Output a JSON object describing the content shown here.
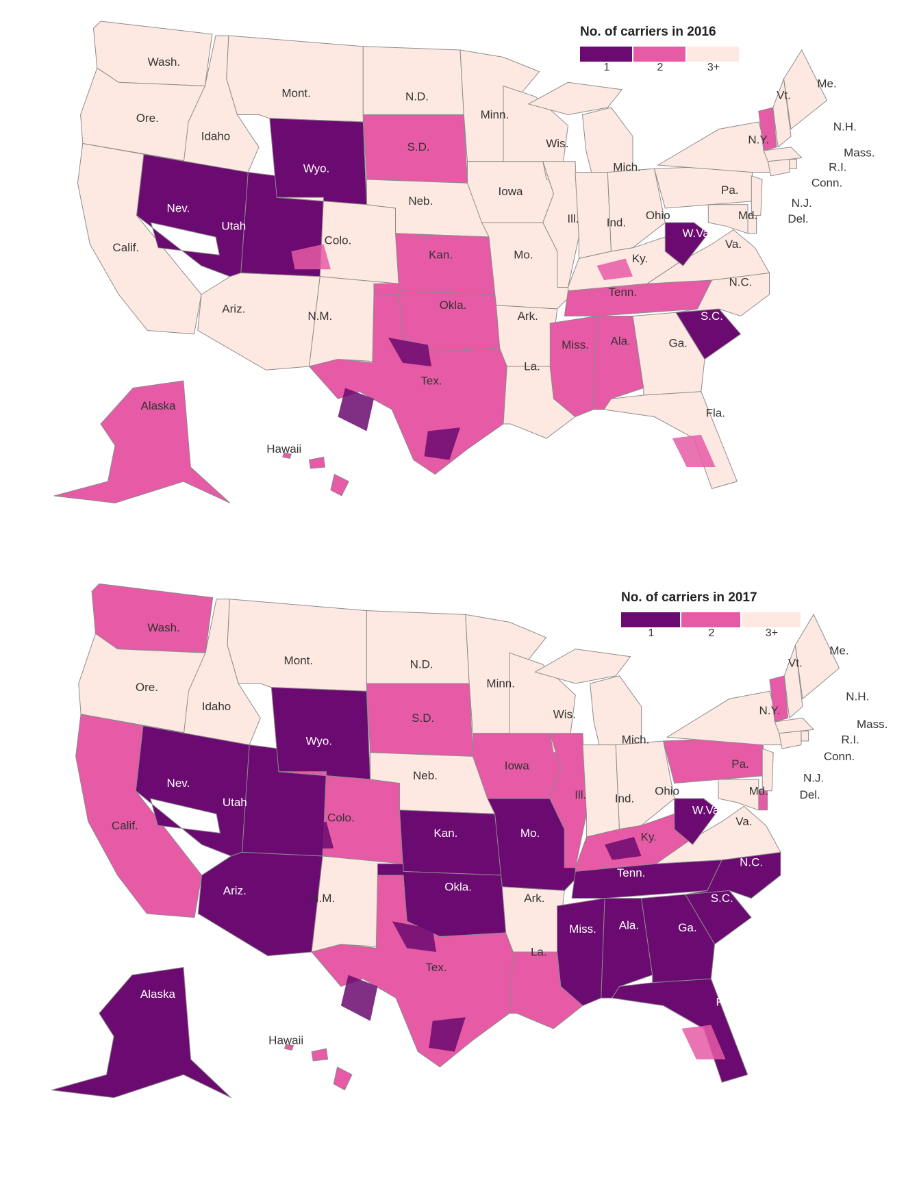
{
  "colors": {
    "one": "#6b0a70",
    "two": "#e65aa6",
    "three_plus": "#fde9e1",
    "border": "#8c8c8c",
    "label_dark": "#333333",
    "label_light": "#ffffff",
    "no_data": "#d9d9d9"
  },
  "legend_labels": [
    "1",
    "2",
    "3+"
  ],
  "maps": [
    {
      "legend_title": "No. of carriers in 2016",
      "states": {
        "WA": {
          "label": "Wash.",
          "carriers": "3+"
        },
        "OR": {
          "label": "Ore.",
          "carriers": "3+"
        },
        "CA": {
          "label": "Calif.",
          "carriers": "3+"
        },
        "ID": {
          "label": "Idaho",
          "carriers": "3+"
        },
        "NV": {
          "label": "Nev.",
          "carriers": "1"
        },
        "UT": {
          "label": "Utah",
          "carriers": "1"
        },
        "AZ": {
          "label": "Ariz.",
          "carriers": "3+"
        },
        "MT": {
          "label": "Mont.",
          "carriers": "3+"
        },
        "WY": {
          "label": "Wyo.",
          "carriers": "1"
        },
        "CO": {
          "label": "Colo.",
          "carriers": "3+"
        },
        "NM": {
          "label": "N.M.",
          "carriers": "3+"
        },
        "ND": {
          "label": "N.D.",
          "carriers": "3+"
        },
        "SD": {
          "label": "S.D.",
          "carriers": "2"
        },
        "NE": {
          "label": "Neb.",
          "carriers": "3+"
        },
        "KS": {
          "label": "Kan.",
          "carriers": "2"
        },
        "OK": {
          "label": "Okla.",
          "carriers": "2"
        },
        "TX": {
          "label": "Tex.",
          "carriers": "2"
        },
        "MN": {
          "label": "Minn.",
          "carriers": "3+"
        },
        "IA": {
          "label": "Iowa",
          "carriers": "3+"
        },
        "MO": {
          "label": "Mo.",
          "carriers": "3+"
        },
        "AR": {
          "label": "Ark.",
          "carriers": "3+"
        },
        "LA": {
          "label": "La.",
          "carriers": "3+"
        },
        "WI": {
          "label": "Wis.",
          "carriers": "3+"
        },
        "IL": {
          "label": "Ill.",
          "carriers": "3+"
        },
        "MI": {
          "label": "Mich.",
          "carriers": "3+"
        },
        "IN": {
          "label": "Ind.",
          "carriers": "3+"
        },
        "OH": {
          "label": "Ohio",
          "carriers": "3+"
        },
        "KY": {
          "label": "Ky.",
          "carriers": "3+"
        },
        "TN": {
          "label": "Tenn.",
          "carriers": "2"
        },
        "MS": {
          "label": "Miss.",
          "carriers": "2"
        },
        "AL": {
          "label": "Ala.",
          "carriers": "2"
        },
        "GA": {
          "label": "Ga.",
          "carriers": "3+"
        },
        "FL": {
          "label": "Fla.",
          "carriers": "3+"
        },
        "SC": {
          "label": "S.C.",
          "carriers": "1"
        },
        "NC": {
          "label": "N.C.",
          "carriers": "3+"
        },
        "VA": {
          "label": "Va.",
          "carriers": "3+"
        },
        "WV": {
          "label": "W.Va.",
          "carriers": "1"
        },
        "PA": {
          "label": "Pa.",
          "carriers": "3+"
        },
        "NY": {
          "label": "N.Y.",
          "carriers": "3+"
        },
        "VT": {
          "label": "Vt.",
          "carriers": "2"
        },
        "NH": {
          "label": "N.H.",
          "carriers": "3+"
        },
        "ME": {
          "label": "Me.",
          "carriers": "3+"
        },
        "MA": {
          "label": "Mass.",
          "carriers": "3+"
        },
        "RI": {
          "label": "R.I.",
          "carriers": "3+"
        },
        "CT": {
          "label": "Conn.",
          "carriers": "3+"
        },
        "NJ": {
          "label": "N.J.",
          "carriers": "3+"
        },
        "DE": {
          "label": "Del.",
          "carriers": "3+"
        },
        "MD": {
          "label": "Md.",
          "carriers": "3+"
        },
        "AK": {
          "label": "Alaska",
          "carriers": "2"
        },
        "HI": {
          "label": "Hawaii",
          "carriers": "2"
        }
      }
    },
    {
      "legend_title": "No. of carriers in 2017",
      "states": {
        "WA": {
          "label": "Wash.",
          "carriers": "2"
        },
        "OR": {
          "label": "Ore.",
          "carriers": "3+"
        },
        "CA": {
          "label": "Calif.",
          "carriers": "2"
        },
        "ID": {
          "label": "Idaho",
          "carriers": "3+"
        },
        "NV": {
          "label": "Nev.",
          "carriers": "1"
        },
        "UT": {
          "label": "Utah",
          "carriers": "1"
        },
        "AZ": {
          "label": "Ariz.",
          "carriers": "1"
        },
        "MT": {
          "label": "Mont.",
          "carriers": "3+"
        },
        "WY": {
          "label": "Wyo.",
          "carriers": "1"
        },
        "CO": {
          "label": "Colo.",
          "carriers": "2"
        },
        "NM": {
          "label": "N.M.",
          "carriers": "3+"
        },
        "ND": {
          "label": "N.D.",
          "carriers": "3+"
        },
        "SD": {
          "label": "S.D.",
          "carriers": "2"
        },
        "NE": {
          "label": "Neb.",
          "carriers": "3+"
        },
        "KS": {
          "label": "Kan.",
          "carriers": "1"
        },
        "OK": {
          "label": "Okla.",
          "carriers": "1"
        },
        "TX": {
          "label": "Tex.",
          "carriers": "2"
        },
        "MN": {
          "label": "Minn.",
          "carriers": "3+"
        },
        "IA": {
          "label": "Iowa",
          "carriers": "2"
        },
        "MO": {
          "label": "Mo.",
          "carriers": "1"
        },
        "AR": {
          "label": "Ark.",
          "carriers": "3+"
        },
        "LA": {
          "label": "La.",
          "carriers": "2"
        },
        "WI": {
          "label": "Wis.",
          "carriers": "3+"
        },
        "IL": {
          "label": "Ill.",
          "carriers": "2"
        },
        "MI": {
          "label": "Mich.",
          "carriers": "3+"
        },
        "IN": {
          "label": "Ind.",
          "carriers": "3+"
        },
        "OH": {
          "label": "Ohio",
          "carriers": "3+"
        },
        "KY": {
          "label": "Ky.",
          "carriers": "2"
        },
        "TN": {
          "label": "Tenn.",
          "carriers": "1"
        },
        "MS": {
          "label": "Miss.",
          "carriers": "1"
        },
        "AL": {
          "label": "Ala.",
          "carriers": "1"
        },
        "GA": {
          "label": "Ga.",
          "carriers": "1"
        },
        "FL": {
          "label": "Fla.",
          "carriers": "1"
        },
        "SC": {
          "label": "S.C.",
          "carriers": "1"
        },
        "NC": {
          "label": "N.C.",
          "carriers": "1"
        },
        "VA": {
          "label": "Va.",
          "carriers": "3+"
        },
        "WV": {
          "label": "W.Va.",
          "carriers": "1"
        },
        "PA": {
          "label": "Pa.",
          "carriers": "2"
        },
        "NY": {
          "label": "N.Y.",
          "carriers": "3+"
        },
        "VT": {
          "label": "Vt.",
          "carriers": "2"
        },
        "NH": {
          "label": "N.H.",
          "carriers": "3+"
        },
        "ME": {
          "label": "Me.",
          "carriers": "3+"
        },
        "MA": {
          "label": "Mass.",
          "carriers": "3+"
        },
        "RI": {
          "label": "R.I.",
          "carriers": "3+"
        },
        "CT": {
          "label": "Conn.",
          "carriers": "3+"
        },
        "NJ": {
          "label": "N.J.",
          "carriers": "3+"
        },
        "DE": {
          "label": "Del.",
          "carriers": "2"
        },
        "MD": {
          "label": "Md.",
          "carriers": "3+"
        },
        "AK": {
          "label": "Alaska",
          "carriers": "1"
        },
        "HI": {
          "label": "Hawaii",
          "carriers": "2"
        }
      }
    }
  ]
}
